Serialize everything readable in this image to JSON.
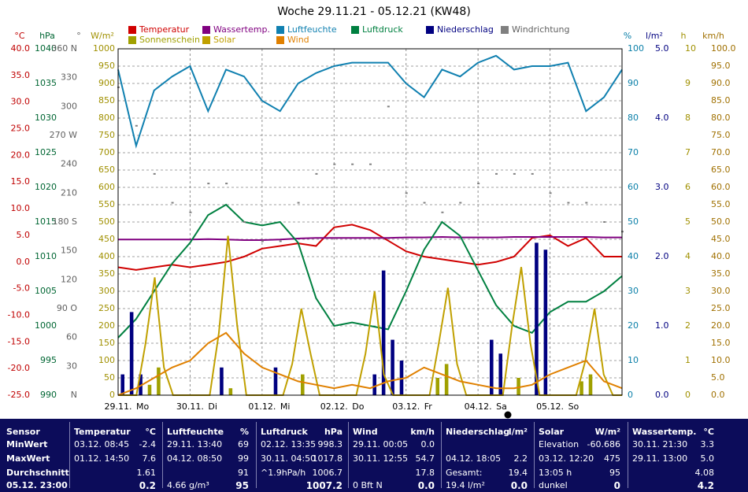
{
  "chart_data": {
    "type": "line",
    "title": "Woche 29.11.21 - 05.12.21 (KW48)",
    "x_labels": [
      "29.11.",
      "30.11.",
      "01.12.",
      "02.12.",
      "03.12.",
      "04.12.",
      "05.12."
    ],
    "weekdays": [
      "Mo",
      "Di",
      "Mi",
      "Do",
      "Fr",
      "Sa",
      "So"
    ],
    "grid": true,
    "axes": [
      {
        "label": "°C",
        "color": "#c00000",
        "side": "left",
        "lim": [
          -25,
          40
        ],
        "ticks": [
          {
            "value": -25,
            "label": "-25.0"
          },
          {
            "value": -20,
            "label": "-20.0"
          },
          {
            "value": -15,
            "label": "-15.0"
          },
          {
            "value": -10,
            "label": "-10.0"
          },
          {
            "value": -5,
            "label": "-5.0"
          },
          {
            "value": 0,
            "label": "0.0"
          },
          {
            "value": 5,
            "label": "5.0"
          },
          {
            "value": 10,
            "label": "10.0"
          },
          {
            "value": 15,
            "label": "15.0"
          },
          {
            "value": 20,
            "label": "20.0"
          },
          {
            "value": 25,
            "label": "25.0"
          },
          {
            "value": 30,
            "label": "30.0"
          },
          {
            "value": 35,
            "label": "35.0"
          },
          {
            "value": 40,
            "label": "40.0"
          }
        ]
      },
      {
        "label": "hPa",
        "color": "#006633",
        "side": "left",
        "lim": [
          990,
          1040
        ],
        "ticks": [
          990,
          995,
          1000,
          1005,
          1010,
          1015,
          1020,
          1025,
          1030,
          1035,
          1040
        ]
      },
      {
        "label": "°",
        "color": "#606060",
        "side": "left",
        "lim": [
          0,
          360
        ],
        "ticks": [
          {
            "value": 0,
            "label": "N"
          },
          30,
          60,
          {
            "value": 90,
            "label": "90 O"
          },
          120,
          150,
          {
            "value": 180,
            "label": "180 S"
          },
          210,
          240,
          {
            "value": 270,
            "label": "270 W"
          },
          300,
          330,
          {
            "value": 360,
            "label": "360 N"
          }
        ]
      },
      {
        "label": "W/m²",
        "color": "#a09000",
        "side": "left",
        "lim": [
          0,
          1000
        ],
        "ticks": [
          0,
          50,
          100,
          150,
          200,
          250,
          300,
          350,
          400,
          450,
          500,
          550,
          600,
          650,
          700,
          750,
          800,
          850,
          900,
          950,
          1000
        ]
      },
      {
        "label": "%",
        "color": "#0a7fa8",
        "side": "right",
        "lim": [
          0,
          100
        ],
        "ticks": [
          0,
          10,
          20,
          30,
          40,
          50,
          60,
          70,
          80,
          90,
          100
        ]
      },
      {
        "label": "l/m²",
        "color": "#000080",
        "side": "right",
        "lim": [
          0,
          5
        ],
        "ticks": [
          {
            "value": 0,
            "label": "0.0"
          },
          {
            "value": 1,
            "label": "1.0"
          },
          {
            "value": 2,
            "label": "2.0"
          },
          {
            "value": 3,
            "label": "3.0"
          },
          {
            "value": 4,
            "label": "4.0"
          },
          {
            "value": 5,
            "label": "5.0"
          }
        ]
      },
      {
        "label": "h",
        "color": "#a09000",
        "side": "right",
        "lim": [
          0,
          10
        ],
        "ticks": [
          0,
          1,
          2,
          3,
          4,
          5,
          6,
          7,
          8,
          9,
          10
        ]
      },
      {
        "label": "km/h",
        "color": "#a07000",
        "side": "right",
        "lim": [
          0,
          100
        ],
        "ticks": [
          {
            "value": 0,
            "label": "0.0"
          },
          {
            "value": 5,
            "label": "5.0"
          },
          {
            "value": 10,
            "label": "10.0"
          },
          {
            "value": 15,
            "label": "15.0"
          },
          {
            "value": 20,
            "label": "20.0"
          },
          {
            "value": 25,
            "label": "25.0"
          },
          {
            "value": 30,
            "label": "30.0"
          },
          {
            "value": 35,
            "label": "35.0"
          },
          {
            "value": 40,
            "label": "40.0"
          },
          {
            "value": 45,
            "label": "45.0"
          },
          {
            "value": 50,
            "label": "50.0"
          },
          {
            "value": 55,
            "label": "55.0"
          },
          {
            "value": 60,
            "label": "60.0"
          },
          {
            "value": 65,
            "label": "65.0"
          },
          {
            "value": 70,
            "label": "70.0"
          },
          {
            "value": 75,
            "label": "75.0"
          },
          {
            "value": 80,
            "label": "80.0"
          },
          {
            "value": 85,
            "label": "85.0"
          },
          {
            "value": 90,
            "label": "90.0"
          },
          {
            "value": 95,
            "label": "95.0"
          },
          {
            "value": 100,
            "label": "100.0"
          }
        ]
      }
    ],
    "series": [
      {
        "name": "Temperatur",
        "color": "#d00000",
        "axis": "°C",
        "style": "line",
        "values": [
          -1,
          -1.5,
          -1,
          -0.5,
          -1,
          -0.5,
          0,
          1,
          2.5,
          3,
          3.5,
          3,
          6.5,
          7,
          6,
          4,
          2,
          1,
          0.5,
          0,
          -0.5,
          0,
          1,
          4.5,
          5,
          3,
          4.5,
          1,
          1
        ]
      },
      {
        "name": "Wassertemp.",
        "color": "#800080",
        "axis": "°C",
        "style": "line",
        "values": [
          4.2,
          4.2,
          4.2,
          4.2,
          4.2,
          4.3,
          4.2,
          4.1,
          4.1,
          4.2,
          4.4,
          4.5,
          4.5,
          4.5,
          4.5,
          4.5,
          4.6,
          4.6,
          4.7,
          4.6,
          4.6,
          4.6,
          4.7,
          4.7,
          4.7,
          4.7,
          4.7,
          4.6,
          4.6
        ]
      },
      {
        "name": "Luftfeuchte",
        "color": "#1080b0",
        "axis": "%",
        "style": "line",
        "values": [
          94,
          72,
          88,
          92,
          95,
          82,
          94,
          92,
          85,
          82,
          90,
          93,
          95,
          96,
          96,
          96,
          90,
          86,
          94,
          92,
          96,
          98,
          94,
          95,
          95,
          96,
          82,
          86,
          94
        ]
      },
      {
        "name": "Luftdruck",
        "color": "#008040",
        "axis": "hPa",
        "style": "line",
        "values": [
          998.3,
          1001,
          1005,
          1009,
          1012,
          1016,
          1017.5,
          1015,
          1014.5,
          1015,
          1012,
          1004,
          1000,
          1000.5,
          1000,
          999.5,
          1005,
          1011,
          1015,
          1013,
          1008,
          1003,
          1000,
          999,
          1002,
          1003.5,
          1003.5,
          1005,
          1007.2
        ]
      },
      {
        "name": "Niederschlag",
        "color": "#000080",
        "axis": "l/m²",
        "style": "bar",
        "values": [
          0.3,
          1.2,
          0.3,
          0,
          0,
          0,
          0,
          0,
          0,
          0,
          0,
          0.4,
          0,
          0,
          0,
          0,
          0,
          0.4,
          0,
          0,
          0,
          0,
          0,
          0,
          0,
          0,
          0,
          0,
          0.3,
          1.8,
          0.8,
          0.5,
          0,
          0,
          0,
          0,
          0,
          0,
          0,
          0,
          0,
          0.8,
          0.6,
          0,
          0,
          0,
          2.2,
          2.1,
          0,
          0,
          0,
          0,
          0,
          0,
          0,
          0
        ]
      },
      {
        "name": "Windrichtung",
        "color": "#808080",
        "axis": "°",
        "style": "dots",
        "values": [
          320,
          280,
          230,
          200,
          190,
          220,
          220,
          180,
          160,
          160,
          200,
          230,
          240,
          240,
          240,
          300,
          210,
          200,
          190,
          200,
          220,
          230,
          230,
          230,
          210,
          200,
          200,
          180,
          170
        ]
      },
      {
        "name": "Sonnenschein",
        "color": "#a0a000",
        "axis": "h",
        "style": "bar",
        "values": [
          0,
          0,
          0,
          0.3,
          0.8,
          0,
          0,
          0,
          0,
          0,
          0,
          0,
          0.2,
          0,
          0,
          0,
          0,
          0,
          0,
          0,
          0.6,
          0,
          0,
          0,
          0,
          0,
          0,
          0,
          0,
          0,
          0,
          0,
          0,
          0,
          0,
          0.5,
          0.9,
          0,
          0,
          0,
          0,
          0,
          0,
          0,
          0.5,
          0,
          0,
          0,
          0,
          0,
          0,
          0.4,
          0.6,
          0,
          0,
          0
        ]
      },
      {
        "name": "Solar",
        "color": "#c0a000",
        "axis": "W/m²",
        "style": "line",
        "values": [
          0,
          0,
          0,
          150,
          340,
          80,
          0,
          0,
          0,
          0,
          0,
          180,
          460,
          200,
          0,
          0,
          0,
          0,
          0,
          90,
          250,
          120,
          0,
          0,
          0,
          0,
          0,
          120,
          300,
          60,
          0,
          0,
          0,
          0,
          0,
          150,
          310,
          90,
          0,
          0,
          0,
          0,
          0,
          200,
          370,
          150,
          0,
          0,
          0,
          0,
          0,
          100,
          250,
          60,
          0,
          0
        ]
      },
      {
        "name": "Wind",
        "color": "#e08000",
        "axis": "km/h",
        "style": "line",
        "values": [
          0,
          2,
          5,
          8,
          10,
          15,
          18,
          12,
          8,
          6,
          4,
          3,
          2,
          3,
          2,
          4,
          5,
          8,
          6,
          4,
          3,
          2,
          2,
          3,
          6,
          8,
          10,
          4,
          2
        ]
      }
    ]
  },
  "table": {
    "sensor": [
      "Sensor",
      "MinWert",
      "MaxWert",
      "Durchschnitt",
      "05.12. 23:00"
    ],
    "columns": [
      {
        "title": "Temperatur",
        "unit": "°C",
        "rows": [
          [
            "03.12. 08:45",
            "-2.4"
          ],
          [
            "01.12. 14:50",
            "7.6"
          ],
          [
            null,
            "1.61"
          ],
          [
            null,
            "0.2"
          ]
        ]
      },
      {
        "title": "Luftfeuchte",
        "unit": "%",
        "rows": [
          [
            "29.11. 13:40",
            "69"
          ],
          [
            "04.12. 08:50",
            "99"
          ],
          [
            null,
            "91"
          ],
          [
            "4.66 g/m³",
            "95"
          ]
        ]
      },
      {
        "title": "Luftdruck",
        "unit": "hPa",
        "rows": [
          [
            "02.12. 13:35",
            "998.3"
          ],
          [
            "30.11. 04:50",
            "1017.8"
          ],
          [
            "^1.9hPa/h",
            "1006.7"
          ],
          [
            null,
            "1007.2"
          ]
        ]
      },
      {
        "title": "Wind",
        "unit": "km/h",
        "rows": [
          [
            "29.11. 00:05",
            "0.0"
          ],
          [
            "30.11. 12:55",
            "54.7"
          ],
          [
            null,
            "17.8"
          ],
          [
            "0 Bft N",
            "0.0"
          ]
        ]
      },
      {
        "title": "Niederschlag",
        "unit": "l/m²",
        "rows": [
          [
            null,
            null
          ],
          [
            "04.12. 18:05",
            "2.2"
          ],
          [
            "Gesamt:",
            "19.4"
          ],
          [
            "19.4 l/m²",
            "0.0"
          ]
        ]
      },
      {
        "title": "Solar",
        "unit": "W/m²",
        "rows": [
          [
            "Elevation",
            "-60.686"
          ],
          [
            "03.12. 12:20",
            "475"
          ],
          [
            "13:05 h",
            "95"
          ],
          [
            "dunkel",
            "0"
          ]
        ]
      },
      {
        "title": "Wassertemp.",
        "unit": "°C",
        "rows": [
          [
            "30.11. 21:30",
            "3.3"
          ],
          [
            "29.11. 13:00",
            "5.0"
          ],
          [
            null,
            "4.08"
          ],
          [
            null,
            "4.2"
          ]
        ]
      }
    ]
  }
}
